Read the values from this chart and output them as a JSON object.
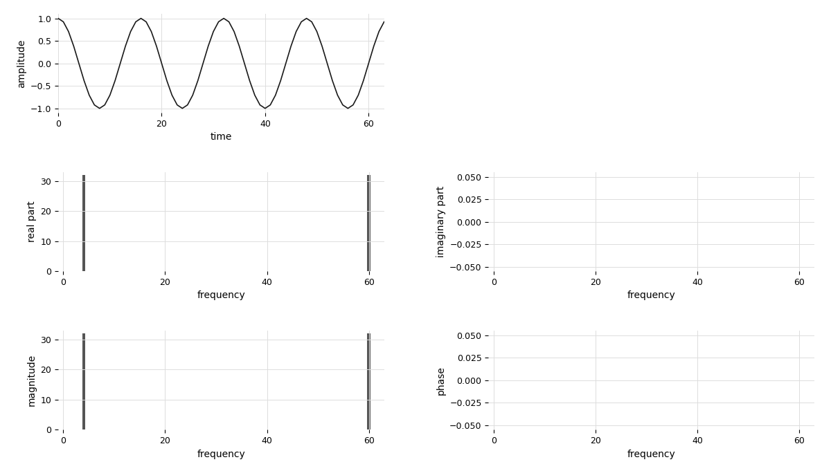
{
  "N": 64,
  "freq_cycles": 4,
  "background_color": "#ffffff",
  "line_color": "#1a1a1a",
  "bar_color": "#555555",
  "time_xlabel": "time",
  "time_ylabel": "amplitude",
  "real_xlabel": "frequency",
  "real_ylabel": "real part",
  "imag_xlabel": "frequency",
  "imag_ylabel": "imaginary part",
  "mag_xlabel": "frequency",
  "mag_ylabel": "magnitude",
  "phase_xlabel": "frequency",
  "phase_ylabel": "phase",
  "time_xlim": [
    0,
    63
  ],
  "time_ylim": [
    -1.1,
    1.1
  ],
  "freq_xlim": [
    -1,
    63
  ],
  "real_ylim": [
    0,
    33
  ],
  "imag_ylim": [
    -0.055,
    0.055
  ],
  "mag_ylim": [
    0,
    33
  ],
  "phase_ylim": [
    -0.055,
    0.055
  ],
  "time_xticks": [
    0,
    20,
    40,
    60
  ],
  "time_yticks": [
    -1.0,
    -0.5,
    0.0,
    0.5,
    1.0
  ],
  "freq_xticks": [
    0,
    20,
    40,
    60
  ],
  "real_yticks": [
    0,
    10,
    20,
    30
  ],
  "imag_yticks": [
    -0.05,
    -0.025,
    0.0,
    0.025,
    0.05
  ],
  "mag_yticks": [
    0,
    10,
    20,
    30
  ],
  "phase_yticks": [
    -0.05,
    -0.025,
    0.0,
    0.025,
    0.05
  ],
  "label_font_size": 10,
  "tick_font_size": 9,
  "bar_width": 0.6,
  "line_width": 1.2,
  "grid_color": "#dddddd",
  "grid_linewidth": 0.7,
  "grid_alpha": 1.0
}
